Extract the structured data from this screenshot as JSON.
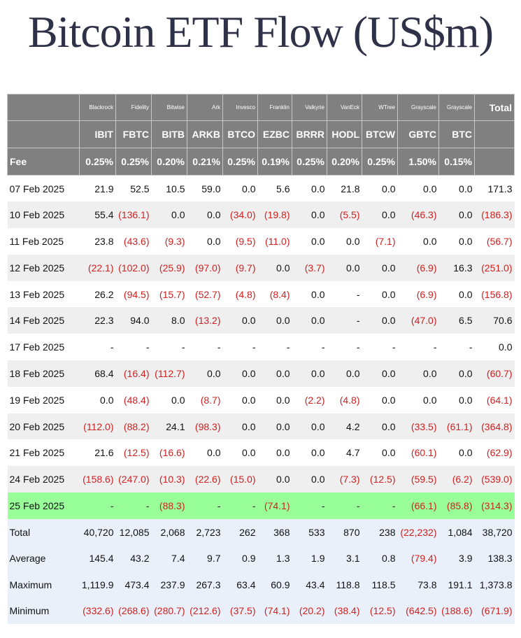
{
  "title": "Bitcoin ETF Flow (US$m)",
  "colors": {
    "header_bg": "#808080",
    "highlight_row": "#99ff99",
    "negative": "#d02020",
    "summary_bg": "#eaf0fa"
  },
  "issuers": [
    "",
    "Blackrock",
    "Fidelity",
    "Bitwise",
    "Ark",
    "Invesco",
    "Franklin",
    "Valkyrie",
    "VanEck",
    "WTree",
    "Grayscale",
    "Grayscale",
    "Total"
  ],
  "tickers": [
    "",
    "IBIT",
    "FBTC",
    "BITB",
    "ARKB",
    "BTCO",
    "EZBC",
    "BRRR",
    "HODL",
    "BTCW",
    "GBTC",
    "BTC",
    ""
  ],
  "fees": [
    "Fee",
    "0.25%",
    "0.25%",
    "0.20%",
    "0.21%",
    "0.25%",
    "0.19%",
    "0.25%",
    "0.20%",
    "0.25%",
    "1.50%",
    "0.15%",
    ""
  ],
  "rows": [
    [
      "07 Feb 2025",
      "21.9",
      "52.5",
      "10.5",
      "59.0",
      "0.0",
      "5.6",
      "0.0",
      "21.8",
      "0.0",
      "0.0",
      "0.0",
      "171.3"
    ],
    [
      "10 Feb 2025",
      "55.4",
      "(136.1)",
      "0.0",
      "0.0",
      "(34.0)",
      "(19.8)",
      "0.0",
      "(5.5)",
      "0.0",
      "(46.3)",
      "0.0",
      "(186.3)"
    ],
    [
      "11 Feb 2025",
      "23.8",
      "(43.6)",
      "(9.3)",
      "0.0",
      "(9.5)",
      "(11.0)",
      "0.0",
      "0.0",
      "(7.1)",
      "0.0",
      "0.0",
      "(56.7)"
    ],
    [
      "12 Feb 2025",
      "(22.1)",
      "(102.0)",
      "(25.9)",
      "(97.0)",
      "(9.7)",
      "0.0",
      "(3.7)",
      "0.0",
      "0.0",
      "(6.9)",
      "16.3",
      "(251.0)"
    ],
    [
      "13 Feb 2025",
      "26.2",
      "(94.5)",
      "(15.7)",
      "(52.7)",
      "(4.8)",
      "(8.4)",
      "0.0",
      "-",
      "0.0",
      "(6.9)",
      "0.0",
      "(156.8)"
    ],
    [
      "14 Feb 2025",
      "22.3",
      "94.0",
      "8.0",
      "(13.2)",
      "0.0",
      "0.0",
      "0.0",
      "-",
      "0.0",
      "(47.0)",
      "6.5",
      "70.6"
    ],
    [
      "17 Feb 2025",
      "-",
      "-",
      "-",
      "-",
      "-",
      "-",
      "-",
      "-",
      "-",
      "-",
      "-",
      "0.0"
    ],
    [
      "18 Feb 2025",
      "68.4",
      "(16.4)",
      "(112.7)",
      "0.0",
      "0.0",
      "0.0",
      "0.0",
      "0.0",
      "0.0",
      "0.0",
      "0.0",
      "(60.7)"
    ],
    [
      "19 Feb 2025",
      "0.0",
      "(48.4)",
      "0.0",
      "(8.7)",
      "0.0",
      "0.0",
      "(2.2)",
      "(4.8)",
      "0.0",
      "0.0",
      "0.0",
      "(64.1)"
    ],
    [
      "20 Feb 2025",
      "(112.0)",
      "(88.2)",
      "24.1",
      "(98.3)",
      "0.0",
      "0.0",
      "0.0",
      "4.2",
      "0.0",
      "(33.5)",
      "(61.1)",
      "(364.8)"
    ],
    [
      "21 Feb 2025",
      "21.6",
      "(12.5)",
      "(16.6)",
      "0.0",
      "0.0",
      "0.0",
      "0.0",
      "4.7",
      "0.0",
      "(60.1)",
      "0.0",
      "(62.9)"
    ],
    [
      "24 Feb 2025",
      "(158.6)",
      "(247.0)",
      "(10.3)",
      "(22.6)",
      "(15.0)",
      "0.0",
      "0.0",
      "(7.3)",
      "(12.5)",
      "(59.5)",
      "(6.2)",
      "(539.0)"
    ],
    [
      "25 Feb 2025",
      "-",
      "-",
      "(88.3)",
      "-",
      "-",
      "(74.1)",
      "-",
      "-",
      "-",
      "(66.1)",
      "(85.8)",
      "(314.3)"
    ]
  ],
  "highlight_row_index": 12,
  "summary": [
    [
      "Total",
      "40,720",
      "12,085",
      "2,068",
      "2,723",
      "262",
      "368",
      "533",
      "870",
      "238",
      "(22,232)",
      "1,084",
      "38,720"
    ],
    [
      "Average",
      "145.4",
      "43.2",
      "7.4",
      "9.7",
      "0.9",
      "1.3",
      "1.9",
      "3.1",
      "0.8",
      "(79.4)",
      "3.9",
      "138.3"
    ],
    [
      "Maximum",
      "1,119.9",
      "473.4",
      "237.9",
      "267.3",
      "63.4",
      "60.9",
      "43.4",
      "118.8",
      "118.5",
      "73.8",
      "191.1",
      "1,373.8"
    ],
    [
      "Minimum",
      "(332.6)",
      "(268.6)",
      "(280.7)",
      "(212.6)",
      "(37.5)",
      "(74.1)",
      "(20.2)",
      "(38.4)",
      "(12.5)",
      "(642.5)",
      "(188.6)",
      "(671.9)"
    ]
  ]
}
